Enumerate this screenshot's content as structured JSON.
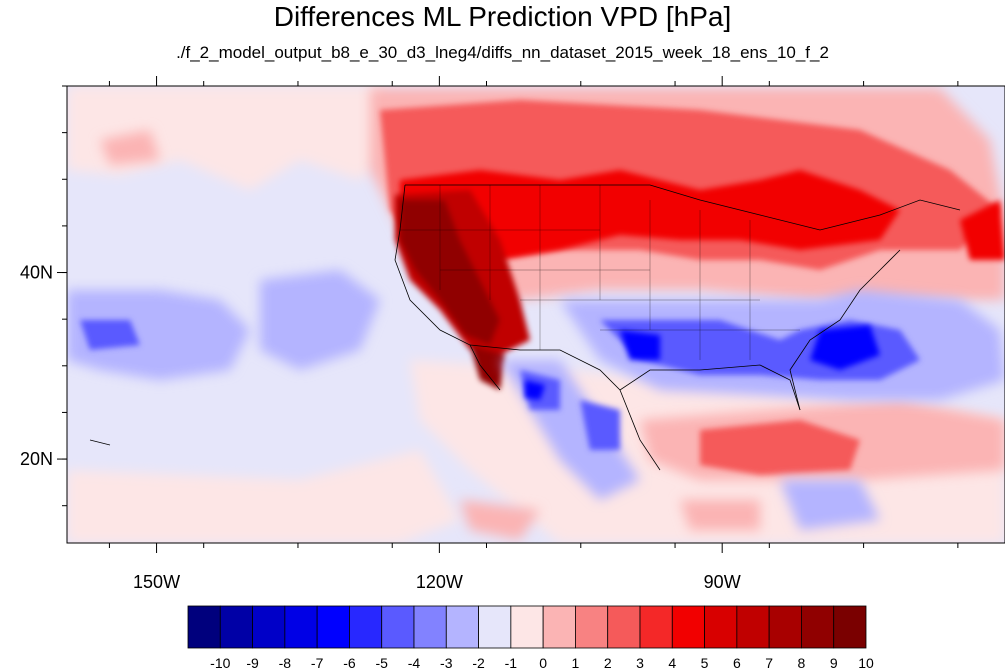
{
  "title": "Differences ML Prediction VPD [hPa]",
  "subtitle": "./f_2_model_output_b8_e_30_d3_lneg4/diffs_nn_dataset_2015_week_18_ens_10_f_2",
  "map": {
    "projection": "cylindrical-equidistant",
    "lon_range": [
      -159.5,
      -60
    ],
    "lat_range": [
      11,
      60
    ],
    "x_ticks": [
      {
        "lon": -150,
        "label": "150W"
      },
      {
        "lon": -120,
        "label": "120W"
      },
      {
        "lon": -90,
        "label": "90W"
      }
    ],
    "y_ticks": [
      {
        "lat": 40,
        "label": "40N"
      },
      {
        "lat": 20,
        "label": "20N"
      }
    ],
    "variable": "VPD difference",
    "units": "hPa"
  },
  "colorbar": {
    "labels": [
      "-10",
      "-9",
      "-8",
      "-7",
      "-6",
      "-5",
      "-4",
      "-3",
      "-2",
      "-1",
      "0",
      "1",
      "2",
      "3",
      "4",
      "5",
      "6",
      "7",
      "8",
      "9",
      "10"
    ],
    "colors": [
      "#00007d",
      "#0000a6",
      "#0000c8",
      "#0000e6",
      "#0000ff",
      "#2828ff",
      "#5a5aff",
      "#8282ff",
      "#b4b4ff",
      "#e6e6fa",
      "#fde6e6",
      "#fbb4b4",
      "#f88282",
      "#f55a5a",
      "#f42828",
      "#f20000",
      "#d80000",
      "#c00000",
      "#a80000",
      "#900000",
      "#7a0000"
    ]
  }
}
